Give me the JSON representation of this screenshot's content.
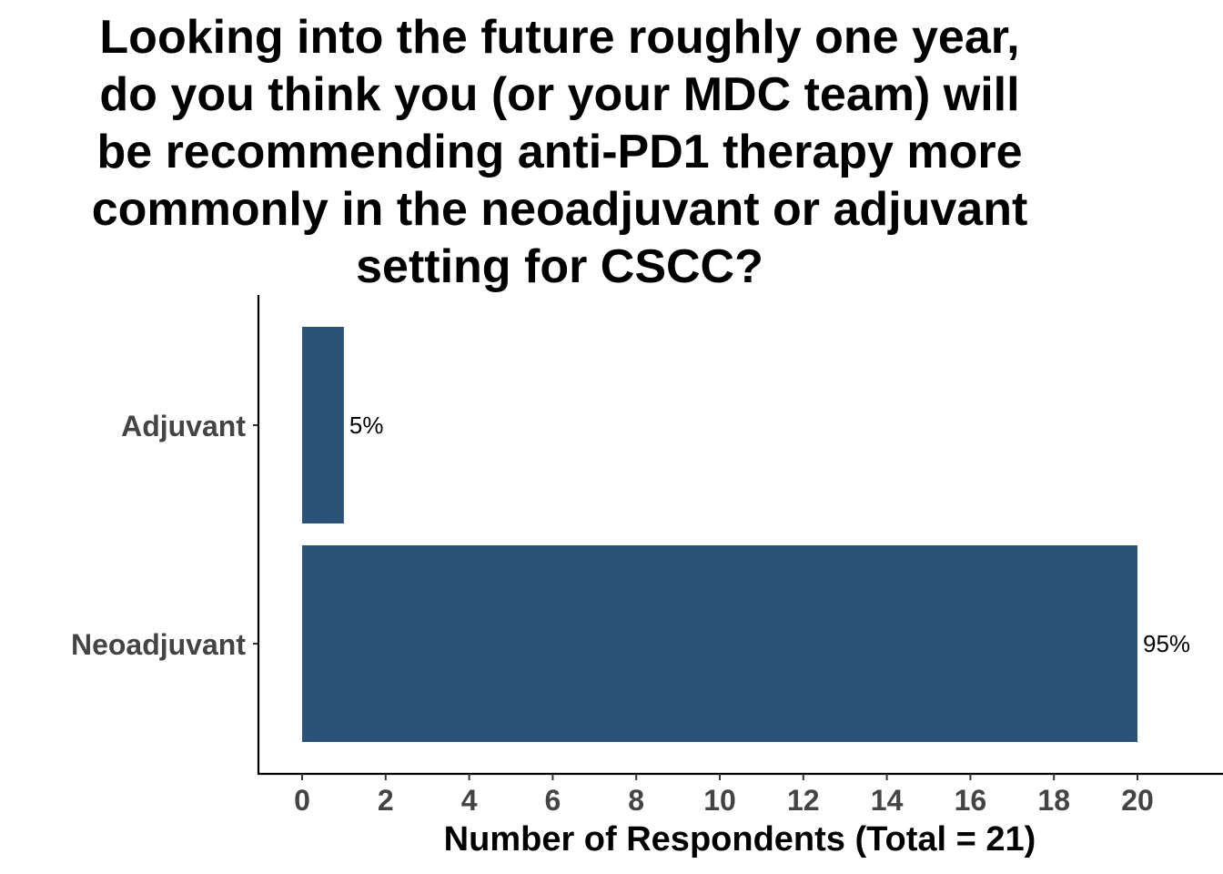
{
  "chart_data": {
    "type": "bar",
    "orientation": "horizontal",
    "title": "Looking into the future roughly one year, do you think you (or your MDC team) will be recommending anti-PD1 therapy more commonly in the neoadjuvant or adjuvant setting for CSCC?",
    "title_lines": [
      "Looking into the future roughly one year,",
      "do you think you (or your MDC team) will",
      "be recommending anti-PD1 therapy more",
      "commonly in the neoadjuvant or adjuvant",
      "setting for CSCC?"
    ],
    "categories": [
      "Adjuvant",
      "Neoadjuvant"
    ],
    "values": [
      1,
      20
    ],
    "data_labels": [
      "5%",
      "95%"
    ],
    "xlabel": "Number of Respondents (Total = 21)",
    "ylabel": "",
    "xlim": [
      0,
      22
    ],
    "x_ticks": [
      0,
      2,
      4,
      6,
      8,
      10,
      12,
      14,
      16,
      18,
      20
    ],
    "bar_color": "#2c5277",
    "grid": false,
    "legend": "none"
  }
}
